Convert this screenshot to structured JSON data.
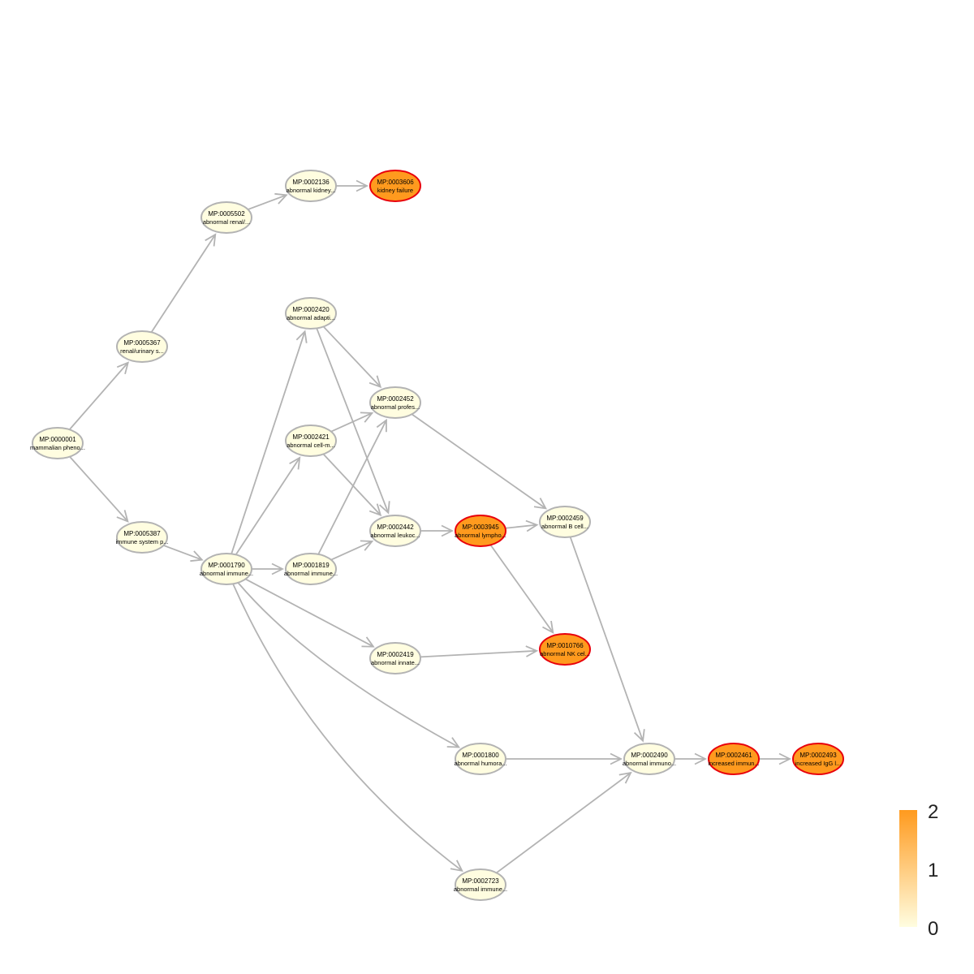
{
  "graph": {
    "nodes": [
      {
        "id": "MP:0000001",
        "label": "mammalian pheno...",
        "value": 0,
        "significant": false
      },
      {
        "id": "MP:0005367",
        "label": "renal/urinary s...",
        "value": 0,
        "significant": false
      },
      {
        "id": "MP:0005387",
        "label": "immune system p...",
        "value": 0,
        "significant": false
      },
      {
        "id": "MP:0005502",
        "label": "abnormal renal/...",
        "value": 0,
        "significant": false
      },
      {
        "id": "MP:0002136",
        "label": "abnormal kidney...",
        "value": 0,
        "significant": false
      },
      {
        "id": "MP:0003606",
        "label": "kidney failure",
        "value": 2,
        "significant": true
      },
      {
        "id": "MP:0001790",
        "label": "abnormal immune...",
        "value": 0,
        "significant": false
      },
      {
        "id": "MP:0002420",
        "label": "abnormal adapti...",
        "value": 0,
        "significant": false
      },
      {
        "id": "MP:0002421",
        "label": "abnormal cell-m...",
        "value": 0,
        "significant": false
      },
      {
        "id": "MP:0001819",
        "label": "abnormal immune...",
        "value": 0,
        "significant": false
      },
      {
        "id": "MP:0002452",
        "label": "abnormal profes...",
        "value": 0,
        "significant": false
      },
      {
        "id": "MP:0002442",
        "label": "abnormal leukoc...",
        "value": 0,
        "significant": false
      },
      {
        "id": "MP:0002419",
        "label": "abnormal innate...",
        "value": 0,
        "significant": false
      },
      {
        "id": "MP:0003945",
        "label": "abnormal lympho...",
        "value": 2,
        "significant": true
      },
      {
        "id": "MP:0002459",
        "label": "abnormal B cell...",
        "value": 0,
        "significant": false
      },
      {
        "id": "MP:0010766",
        "label": "abnormal NK cel...",
        "value": 2,
        "significant": true
      },
      {
        "id": "MP:0001800",
        "label": "abnormal humora...",
        "value": 0,
        "significant": false
      },
      {
        "id": "MP:0002723",
        "label": "abnormal immune...",
        "value": 0,
        "significant": false
      },
      {
        "id": "MP:0002490",
        "label": "abnormal immuno...",
        "value": 0,
        "significant": false
      },
      {
        "id": "MP:0002461",
        "label": "increased immun...",
        "value": 2,
        "significant": true
      },
      {
        "id": "MP:0002493",
        "label": "increased IgG l...",
        "value": 2,
        "significant": true
      }
    ],
    "edges": [
      [
        "MP:0000001",
        "MP:0005367"
      ],
      [
        "MP:0000001",
        "MP:0005387"
      ],
      [
        "MP:0005367",
        "MP:0005502"
      ],
      [
        "MP:0005502",
        "MP:0002136"
      ],
      [
        "MP:0002136",
        "MP:0003606"
      ],
      [
        "MP:0005387",
        "MP:0001790"
      ],
      [
        "MP:0001790",
        "MP:0002420"
      ],
      [
        "MP:0001790",
        "MP:0002421"
      ],
      [
        "MP:0001790",
        "MP:0001819"
      ],
      [
        "MP:0001790",
        "MP:0002419"
      ],
      [
        "MP:0001790",
        "MP:0001800"
      ],
      [
        "MP:0001790",
        "MP:0002723"
      ],
      [
        "MP:0002420",
        "MP:0002452"
      ],
      [
        "MP:0002420",
        "MP:0002442"
      ],
      [
        "MP:0002421",
        "MP:0002452"
      ],
      [
        "MP:0002421",
        "MP:0002442"
      ],
      [
        "MP:0001819",
        "MP:0002452"
      ],
      [
        "MP:0001819",
        "MP:0002442"
      ],
      [
        "MP:0002452",
        "MP:0002459"
      ],
      [
        "MP:0002442",
        "MP:0003945"
      ],
      [
        "MP:0003945",
        "MP:0002459"
      ],
      [
        "MP:0003945",
        "MP:0010766"
      ],
      [
        "MP:0002419",
        "MP:0010766"
      ],
      [
        "MP:0002459",
        "MP:0002490"
      ],
      [
        "MP:0001800",
        "MP:0002490"
      ],
      [
        "MP:0002723",
        "MP:0002490"
      ],
      [
        "MP:0002490",
        "MP:0002461"
      ],
      [
        "MP:0002461",
        "MP:0002493"
      ]
    ]
  },
  "legend": {
    "ticks": [
      "2",
      "1",
      "0"
    ],
    "max": 2,
    "min": 0
  },
  "colors": {
    "low": "#fffde0",
    "high": "#ff9a1e",
    "edge": "#b3b3b3",
    "border_normal": "#b3b3b3",
    "border_significant": "#e8000b"
  }
}
